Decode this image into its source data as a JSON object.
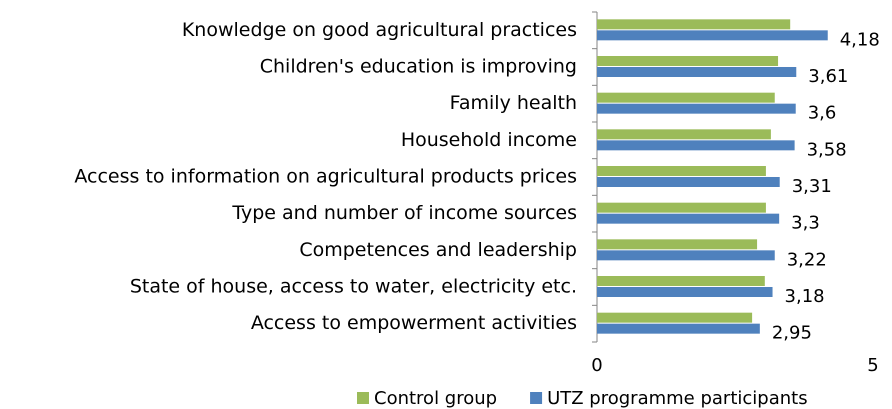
{
  "chart_data": {
    "type": "hbar",
    "categories": [
      "Knowledge on good agricultural practices",
      "Children's education is improving",
      "Family health ",
      "Household income",
      "Access to information on agricultural products prices",
      "Type and number of income sources",
      "Competences and leadership",
      "State of house, access to water, electricity etc.",
      "Access to empowerment activities"
    ],
    "series": [
      {
        "name": "Control group",
        "color": "#9bbb59",
        "values": [
          3.5,
          3.28,
          3.22,
          3.15,
          3.06,
          3.06,
          2.9,
          3.04,
          2.81
        ]
      },
      {
        "name": "UTZ programme participants",
        "color": "#4f81bd",
        "values": [
          4.18,
          3.61,
          3.6,
          3.58,
          3.31,
          3.3,
          3.22,
          3.18,
          2.95
        ],
        "value_labels": [
          "4,18",
          "3,61",
          "3,6",
          "3,58",
          "3,31",
          "3,3",
          "3,22",
          "3,18",
          "2,95"
        ]
      }
    ],
    "xlim": [
      0,
      5
    ],
    "xticks": [
      0,
      5
    ],
    "legend": "bottom"
  }
}
